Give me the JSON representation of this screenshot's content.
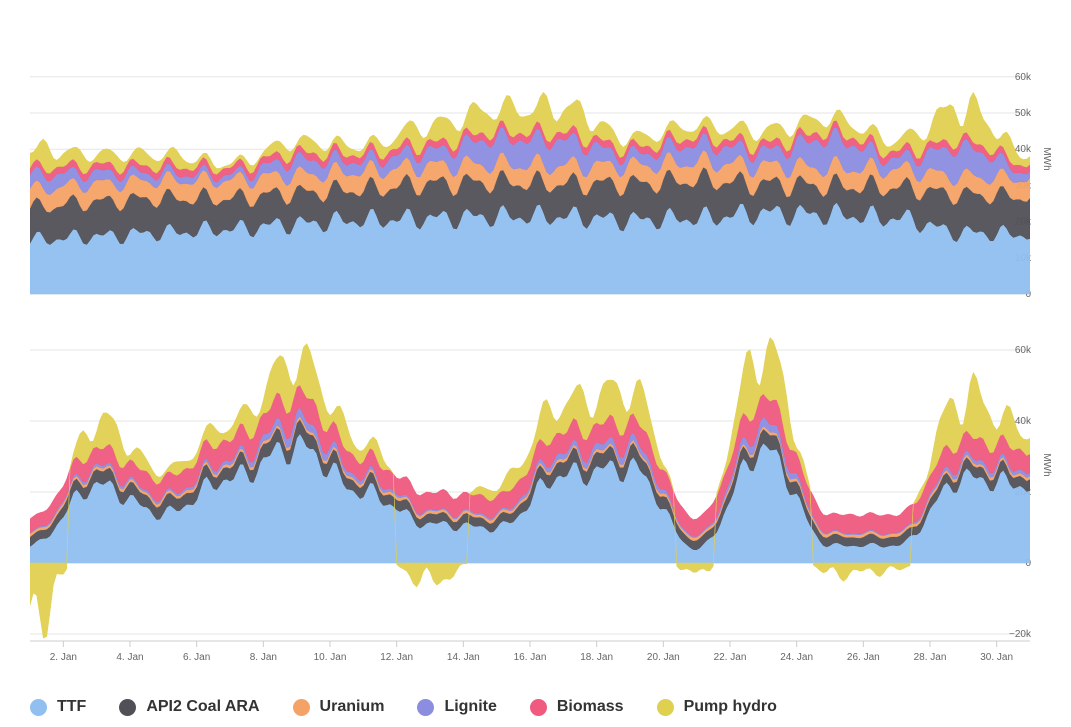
{
  "chart_data": [
    {
      "type": "area",
      "stacked": true,
      "y_unit": "MWh",
      "y_ticks": [
        "0",
        "10k",
        "20k",
        "30k",
        "40k",
        "50k",
        "60k"
      ],
      "ylim": [
        0,
        65000
      ],
      "x_range_days": [
        1.0,
        31.0
      ],
      "grid": true,
      "series": [
        {
          "name": "TTF",
          "color": "#90bff0",
          "values": [
            15000,
            16000,
            17000,
            18000,
            19500,
            20500,
            21000,
            21500,
            21500,
            20500,
            21000,
            22500,
            22000,
            21000,
            17000,
            16500
          ]
        },
        {
          "name": "API2 Coal ARA",
          "color": "#505056",
          "values": [
            9000,
            9500,
            9500,
            8500,
            8500,
            8500,
            9500,
            9500,
            9000,
            10000,
            10500,
            8000,
            8000,
            8500,
            10500,
            10500
          ]
        },
        {
          "name": "Uranium",
          "color": "#f4a266",
          "values": [
            5000,
            5000,
            5000,
            5000,
            5000,
            5000,
            5000,
            5000,
            5000,
            5000,
            5000,
            5000,
            5000,
            5000,
            5000,
            5000
          ]
        },
        {
          "name": "Lignite",
          "color": "#8c8ce0",
          "values": [
            4000,
            3000,
            2000,
            1500,
            4000,
            3000,
            4000,
            7000,
            7000,
            3000,
            5000,
            4000,
            8000,
            3000,
            8000,
            2000
          ]
        },
        {
          "name": "Biomass",
          "color": "#ef5a7e",
          "values": [
            2000,
            2000,
            2000,
            2000,
            2000,
            2000,
            2000,
            2000,
            2000,
            2000,
            2000,
            2000,
            2000,
            2000,
            2000,
            2000
          ]
        },
        {
          "name": "Pump hydro",
          "color": "#e0d050",
          "values": [
            5000,
            3000,
            3000,
            1000,
            3000,
            2000,
            5000,
            6000,
            7000,
            2500,
            3000,
            3500,
            3500,
            3000,
            9000,
            2500
          ]
        }
      ]
    },
    {
      "type": "area",
      "stacked": true,
      "y_unit": "MWh",
      "y_ticks": [
        "−20k",
        "0",
        "20k",
        "40k",
        "60k"
      ],
      "ylim": [
        -20000,
        65000
      ],
      "x_labels": [
        "2. Jan",
        "4. Jan",
        "6. Jan",
        "8. Jan",
        "10. Jan",
        "12. Jan",
        "14. Jan",
        "16. Jan",
        "18. Jan",
        "20. Jan",
        "22. Jan",
        "24. Jan",
        "26. Jan",
        "28. Jan",
        "30. Jan"
      ],
      "x_range_days": [
        1.0,
        31.0
      ],
      "grid": true,
      "series": [
        {
          "name": "TTF",
          "color": "#90bff0",
          "values": [
            5000,
            22000,
            14000,
            24000,
            33000,
            20000,
            11000,
            10000,
            25000,
            27000,
            4000,
            32000,
            5000,
            5000,
            24000,
            22000
          ]
        },
        {
          "name": "API2 Coal ARA",
          "color": "#505056",
          "values": [
            2500,
            3500,
            3500,
            3500,
            4000,
            3000,
            2500,
            2500,
            4000,
            4000,
            2500,
            4000,
            2500,
            2500,
            3000,
            3000
          ]
        },
        {
          "name": "Uranium",
          "color": "#f4a266",
          "values": [
            800,
            800,
            800,
            800,
            800,
            800,
            800,
            800,
            800,
            800,
            800,
            800,
            800,
            800,
            800,
            800
          ]
        },
        {
          "name": "Lignite",
          "color": "#8c8ce0",
          "values": [
            300,
            800,
            600,
            1000,
            2500,
            1000,
            400,
            500,
            1500,
            2000,
            300,
            2500,
            300,
            300,
            1200,
            1000
          ]
        },
        {
          "name": "Biomass",
          "color": "#ef5a7e",
          "values": [
            4000,
            5000,
            5000,
            6000,
            7000,
            5000,
            5000,
            5000,
            6000,
            6000,
            5000,
            7000,
            5000,
            5000,
            6000,
            5500
          ]
        },
        {
          "name": "Pump hydro",
          "color": "#e0d050",
          "values": [
            -15000,
            8000,
            2000,
            4000,
            10000,
            4000,
            -5000,
            3000,
            8000,
            9000,
            -3000,
            14000,
            -3000,
            -2000,
            12000,
            5000
          ]
        }
      ]
    }
  ],
  "legend": [
    {
      "label": "TTF",
      "color": "#90bff0"
    },
    {
      "label": "API2 Coal ARA",
      "color": "#505056"
    },
    {
      "label": "Uranium",
      "color": "#f4a266"
    },
    {
      "label": "Lignite",
      "color": "#8c8ce0"
    },
    {
      "label": "Biomass",
      "color": "#ef5a7e"
    },
    {
      "label": "Pump hydro",
      "color": "#e0d050"
    }
  ]
}
